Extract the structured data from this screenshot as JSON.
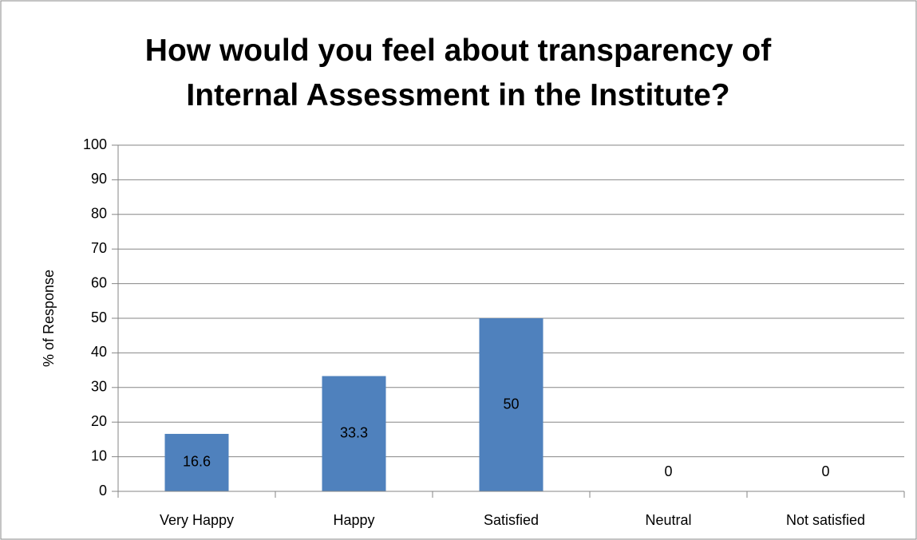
{
  "chart_data": {
    "type": "bar",
    "title": "How would you feel about transparency of Internal Assessment in the Institute?",
    "y_label": "% of Response",
    "categories": [
      "Very Happy",
      "Happy",
      "Satisfied",
      "Neutral",
      "Not satisfied"
    ],
    "values": [
      16.6,
      33.3,
      50,
      0,
      0
    ],
    "color": "#4f81bd",
    "ylim": [
      0,
      100
    ],
    "yticks": [
      0,
      10,
      20,
      30,
      40,
      50,
      60,
      70,
      80,
      90,
      100
    ],
    "grid": true,
    "data_labels": true
  }
}
